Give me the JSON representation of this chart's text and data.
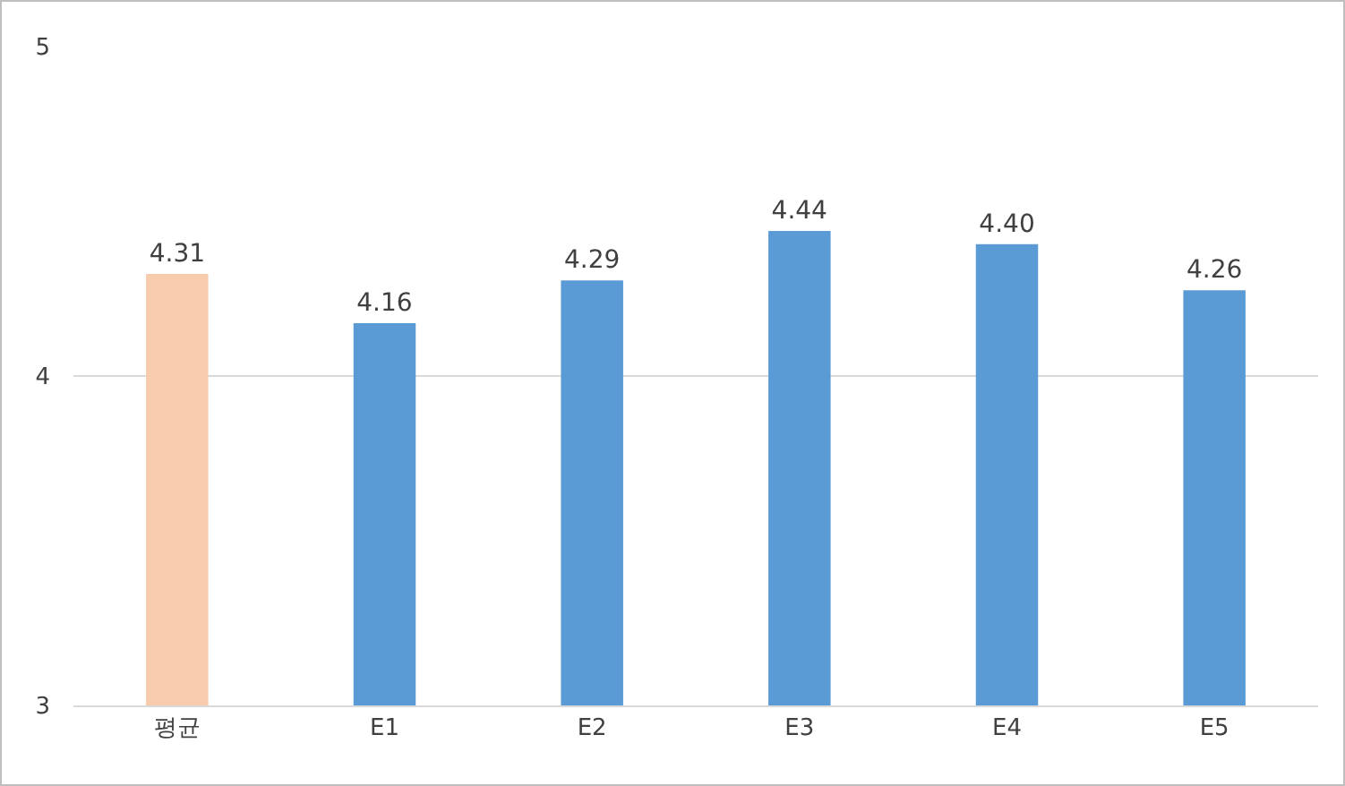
{
  "chart_data": {
    "type": "bar",
    "categories": [
      "평균",
      "E1",
      "E2",
      "E3",
      "E4",
      "E5"
    ],
    "values": [
      4.31,
      4.16,
      4.29,
      4.44,
      4.4,
      4.26
    ],
    "value_labels": [
      "4.31",
      "4.16",
      "4.29",
      "4.44",
      "4.40",
      "4.26"
    ],
    "colors": [
      "#f8cbad",
      "#5b9bd5",
      "#5b9bd5",
      "#5b9bd5",
      "#5b9bd5",
      "#5b9bd5"
    ],
    "ylim": [
      3,
      5
    ],
    "yticks": [
      3,
      4,
      5
    ],
    "grid": "y",
    "legend": false
  }
}
